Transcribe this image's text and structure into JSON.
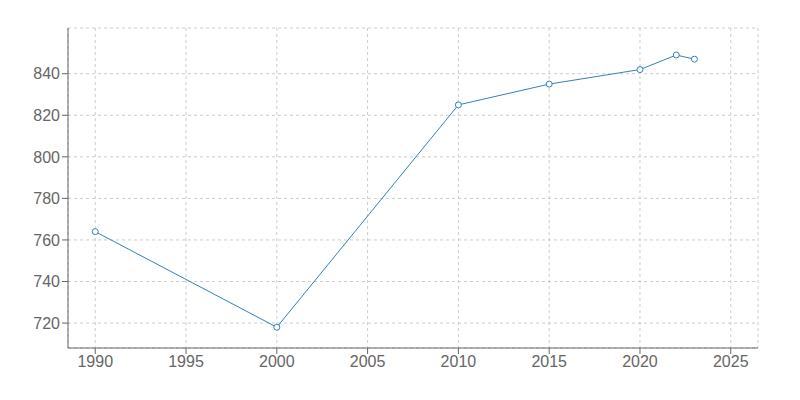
{
  "chart_data": {
    "type": "line",
    "x": [
      1990,
      2000,
      2010,
      2015,
      2020,
      2022,
      2023
    ],
    "values": [
      764,
      718,
      825,
      835,
      842,
      849,
      847
    ],
    "xlim": [
      1988.5,
      2026.5
    ],
    "ylim": [
      708,
      862
    ],
    "xticks": [
      1990,
      1995,
      2000,
      2005,
      2010,
      2015,
      2020,
      2025
    ],
    "yticks": [
      720,
      740,
      760,
      780,
      800,
      820,
      840
    ],
    "grid": true,
    "marker": "circle"
  }
}
